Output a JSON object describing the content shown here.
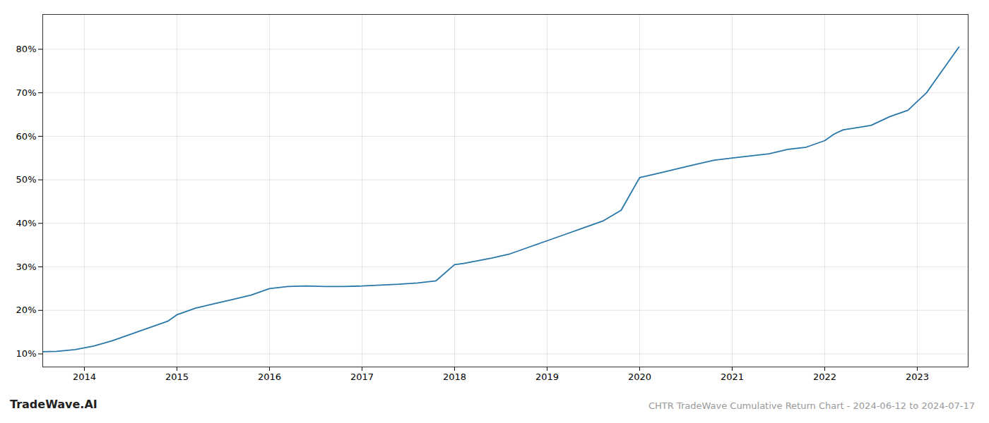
{
  "chart_data": {
    "type": "line",
    "title": "CHTR TradeWave Cumulative Return Chart - 2024-06-12 to 2024-07-17",
    "annotations": [
      "TradeWave.AI"
    ],
    "x": [
      2013.55,
      2013.7,
      2013.9,
      2014.1,
      2014.3,
      2014.5,
      2014.7,
      2014.9,
      2015.0,
      2015.2,
      2015.4,
      2015.6,
      2015.8,
      2016.0,
      2016.2,
      2016.4,
      2016.6,
      2016.8,
      2017.0,
      2017.2,
      2017.4,
      2017.6,
      2017.8,
      2018.0,
      2018.1,
      2018.2,
      2018.4,
      2018.6,
      2018.8,
      2019.0,
      2019.2,
      2019.4,
      2019.6,
      2019.8,
      2020.0,
      2020.1,
      2020.2,
      2020.4,
      2020.6,
      2020.8,
      2021.0,
      2021.2,
      2021.4,
      2021.6,
      2021.8,
      2022.0,
      2022.1,
      2022.2,
      2022.3,
      2022.5,
      2022.7,
      2022.9,
      2023.0,
      2023.1,
      2023.2,
      2023.35,
      2023.45
    ],
    "values": [
      10.5,
      10.6,
      11.0,
      11.8,
      13.0,
      14.5,
      16.0,
      17.5,
      19.0,
      20.5,
      21.5,
      22.5,
      23.5,
      25.0,
      25.5,
      25.6,
      25.5,
      25.5,
      25.6,
      25.8,
      26.0,
      26.3,
      26.8,
      30.5,
      30.8,
      31.2,
      32.0,
      33.0,
      34.5,
      36.0,
      37.5,
      39.0,
      40.5,
      43.0,
      50.5,
      51.0,
      51.5,
      52.5,
      53.5,
      54.5,
      55.0,
      55.5,
      56.0,
      57.0,
      57.5,
      59.0,
      60.5,
      61.5,
      61.8,
      62.5,
      64.5,
      66.0,
      68.0,
      70.0,
      73.0,
      77.5,
      80.5
    ],
    "color": "#2877a8",
    "xlim": [
      2013.55,
      2023.55
    ],
    "xticks": [
      2014,
      2015,
      2016,
      2017,
      2018,
      2019,
      2020,
      2021,
      2022,
      2023
    ],
    "ylim": [
      7,
      88
    ],
    "yticks": [
      {
        "value": 10,
        "label": "10%"
      },
      {
        "value": 20,
        "label": "20%"
      },
      {
        "value": 30,
        "label": "30%"
      },
      {
        "value": 40,
        "label": "40%"
      },
      {
        "value": 50,
        "label": "50%"
      },
      {
        "value": 60,
        "label": "60%"
      },
      {
        "value": 70,
        "label": "70%"
      },
      {
        "value": 80,
        "label": "80%"
      }
    ],
    "grid": true
  }
}
